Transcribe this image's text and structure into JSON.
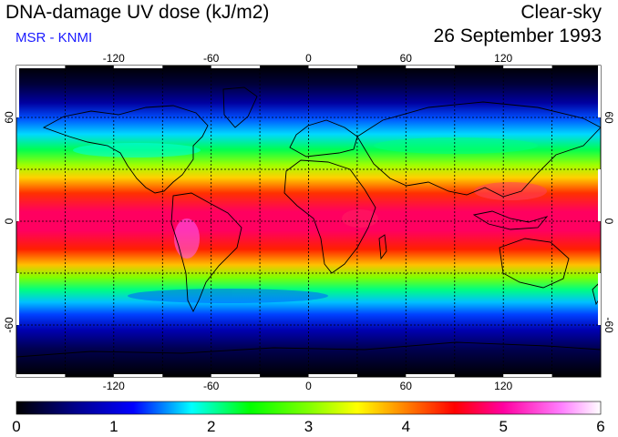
{
  "header": {
    "title": "DNA-damage UV dose (kJ/m2)",
    "subtitle": "MSR - KNMI",
    "condition": "Clear-sky",
    "date": "26 September 1993"
  },
  "map": {
    "projection": "equirectangular",
    "lon_ticks": [
      "-120",
      "-60",
      "0",
      "60",
      "120"
    ],
    "lat_ticks": [
      "60",
      "0",
      "-60"
    ],
    "graticule": "dashed, every 30 degrees",
    "background": "#000000",
    "coastlines": "#000000"
  },
  "colorbar": {
    "labels": [
      "0",
      "1",
      "2",
      "3",
      "4",
      "5",
      "6"
    ],
    "min": 0,
    "max": 6,
    "stops": [
      {
        "value": 0,
        "color": "#000000"
      },
      {
        "value": 0.6,
        "color": "#00008a"
      },
      {
        "value": 1.2,
        "color": "#0000ff"
      },
      {
        "value": 1.8,
        "color": "#00ffff"
      },
      {
        "value": 2.4,
        "color": "#00ff00"
      },
      {
        "value": 3.0,
        "color": "#80ff00"
      },
      {
        "value": 3.5,
        "color": "#ffff00"
      },
      {
        "value": 4.0,
        "color": "#ff8000"
      },
      {
        "value": 4.5,
        "color": "#ff0000"
      },
      {
        "value": 5.0,
        "color": "#ff00a0"
      },
      {
        "value": 5.6,
        "color": "#ff80ff"
      },
      {
        "value": 6.0,
        "color": "#ffffff"
      }
    ]
  }
}
